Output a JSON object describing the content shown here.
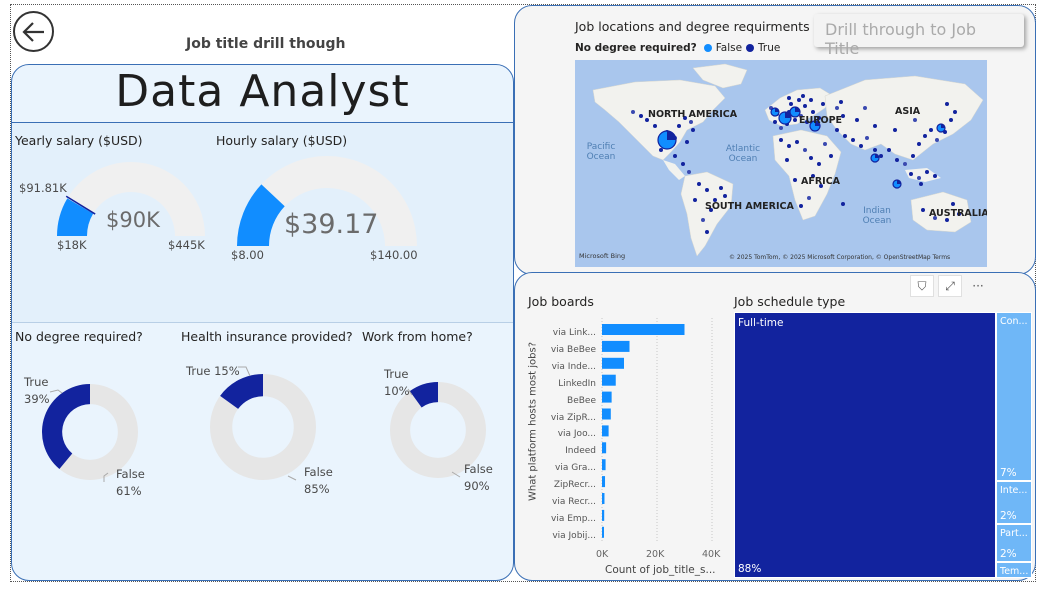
{
  "header": {
    "back_icon": "arrow-left-icon",
    "drill_title": "Job title drill though",
    "job_title": "Data Analyst"
  },
  "salary": {
    "yearly": {
      "title": "Yearly salary ($USD)",
      "value": "$90K",
      "min": "$18K",
      "max": "$445K",
      "target": "$91.81K",
      "fill_fraction": 0.17,
      "color": "#118DFF"
    },
    "hourly": {
      "title": "Hourly salary ($USD)",
      "value": "$39.17",
      "min": "$8.00",
      "max": "$140.00",
      "fill_fraction": 0.24,
      "color": "#118DFF"
    }
  },
  "donuts": [
    {
      "title": "No degree required?",
      "true_label": "True",
      "true_pct": "39%",
      "false_label": "False",
      "false_pct": "61%",
      "true_value": 39
    },
    {
      "title": "Health insurance provided?",
      "true_label": "True 15%",
      "false_label": "False",
      "false_pct": "85%",
      "true_value": 15
    },
    {
      "title": "Work from home?",
      "true_label": "True",
      "true_pct": "10%",
      "false_label": "False",
      "false_pct": "90%",
      "true_value": 10
    }
  ],
  "colors": {
    "true": "#12239E",
    "false": "#E6E6E6",
    "gauge_bg": "#F0F0F0",
    "bar": "#118DFF",
    "tm_main": "#12239E",
    "tm_side": "#6FB7F7"
  },
  "map": {
    "title": "Job locations and degree requirments",
    "legend_title": "No degree required?",
    "legend": [
      {
        "label": "False",
        "color": "#118DFF"
      },
      {
        "label": "True",
        "color": "#12239E"
      }
    ],
    "labels": {
      "north_america": "NORTH AMERICA",
      "europe": "EUROPE",
      "asia": "ASIA",
      "africa": "AFRICA",
      "south_america": "SOUTH AMERICA",
      "australia": "AUSTRALIA"
    },
    "oceans": {
      "pacific": "Pacific Ocean",
      "atlantic": "Atlantic Ocean",
      "indian": "Indian Ocean"
    },
    "brand": "Microsoft Bing",
    "credit": "© 2025 TomTom, © 2025 Microsoft Corporation, © OpenStreetMap  Terms"
  },
  "drill_button": "Drill through to Job Title",
  "job_boards": {
    "title": "Job boards",
    "y_axis_title": "What platform hosts most jobs?",
    "x_axis_title": "Count of job_title_s...",
    "ticks": [
      "0K",
      "20K",
      "40K"
    ],
    "toolbar_icons": [
      "filter-icon",
      "focus-mode-icon",
      "more-options-icon"
    ],
    "toolbar_glyphs": [
      "⛉",
      "⤢",
      "···"
    ]
  },
  "chart_data": [
    {
      "type": "bar",
      "title": "Job boards",
      "xlabel": "Count of job_title_s...",
      "ylabel": "What platform hosts most jobs?",
      "xlim": [
        0,
        40000
      ],
      "categories": [
        "via Link...",
        "via BeBee",
        "via Inde...",
        "LinkedIn",
        "BeBee",
        "via ZipR...",
        "via Joo...",
        "Indeed",
        "via Gra...",
        "ZipRecr...",
        "via Recr...",
        "via Emp...",
        "via Jobij..."
      ],
      "values": [
        30000,
        10000,
        8000,
        5000,
        3500,
        3200,
        2400,
        1500,
        1300,
        1100,
        900,
        800,
        700
      ]
    },
    {
      "type": "treemap",
      "title": "Job schedule type",
      "categories": [
        "Full-time",
        "Con...",
        "Inte...",
        "Part...",
        "Tem..."
      ],
      "labels": [
        "88%",
        "7%",
        "2%",
        "2%",
        ""
      ],
      "values": [
        88,
        7,
        2,
        2,
        1
      ]
    }
  ],
  "schedule": {
    "title": "Job schedule type"
  }
}
